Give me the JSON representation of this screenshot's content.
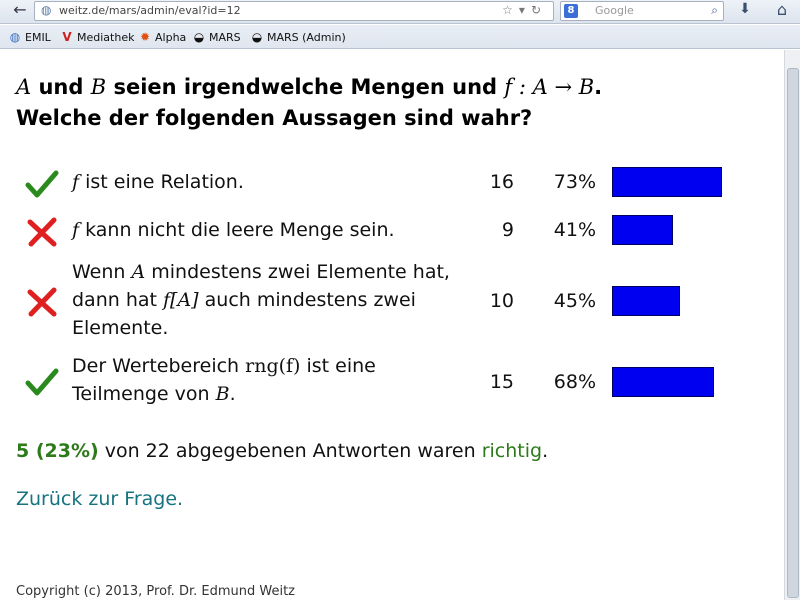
{
  "browser": {
    "url": "weitz.de/mars/admin/eval?id=12",
    "search_placeholder": "Google",
    "search_badge": "8",
    "bookmarks": [
      {
        "label": "EMIL",
        "icon": "globe-icon"
      },
      {
        "label": "Mediathek",
        "icon": "mediathek-icon"
      },
      {
        "label": "Alpha",
        "icon": "sun-icon"
      },
      {
        "label": "MARS",
        "icon": "helmet-icon"
      },
      {
        "label": "MARS (Admin)",
        "icon": "helmet-icon"
      }
    ]
  },
  "question": {
    "line1_set_a": "A",
    "line1_und": "und",
    "line1_set_b": "B",
    "line1_mid": "seien irgendwelche Mengen und",
    "line1_func": "f : A → B",
    "line1_end": ".",
    "line2": "Welche der folgenden Aussagen sind wahr?"
  },
  "answers": [
    {
      "correct": true,
      "parts": {
        "f": "f",
        "text": " ist eine Relation."
      },
      "count": "16",
      "percent": "73%",
      "fraction": 0.73
    },
    {
      "correct": false,
      "parts": {
        "f": "f",
        "text": " kann nicht die leere Menge sein."
      },
      "count": "9",
      "percent": "41%",
      "fraction": 0.41
    },
    {
      "correct": false,
      "parts": {
        "a": "Wenn ",
        "b": "A",
        "c": " mindestens zwei Elemente hat, dann hat ",
        "d": "f[A]",
        "e": " auch mindestens zwei Elemente."
      },
      "count": "10",
      "percent": "45%",
      "fraction": 0.45
    },
    {
      "correct": true,
      "parts": {
        "a": "Der Wertebereich ",
        "b": "rng(f)",
        "c": " ist eine Teilmenge von ",
        "d": "B",
        "e": "."
      },
      "count": "15",
      "percent": "68%",
      "fraction": 0.68
    }
  ],
  "summary": {
    "highlight": "5 (23%)",
    "mid": " von 22 abgegebenen Antworten waren ",
    "ok_word": "richtig",
    "end": "."
  },
  "back_link": "Zurück zur Frage.",
  "footer": "Copyright (c) 2013, Prof. Dr. Edmund Weitz",
  "colors": {
    "bar": "#0000f0",
    "correct": "#2a8a1e",
    "wrong": "#e02020",
    "highlight": "#2d7a1a",
    "link": "#16737f"
  }
}
